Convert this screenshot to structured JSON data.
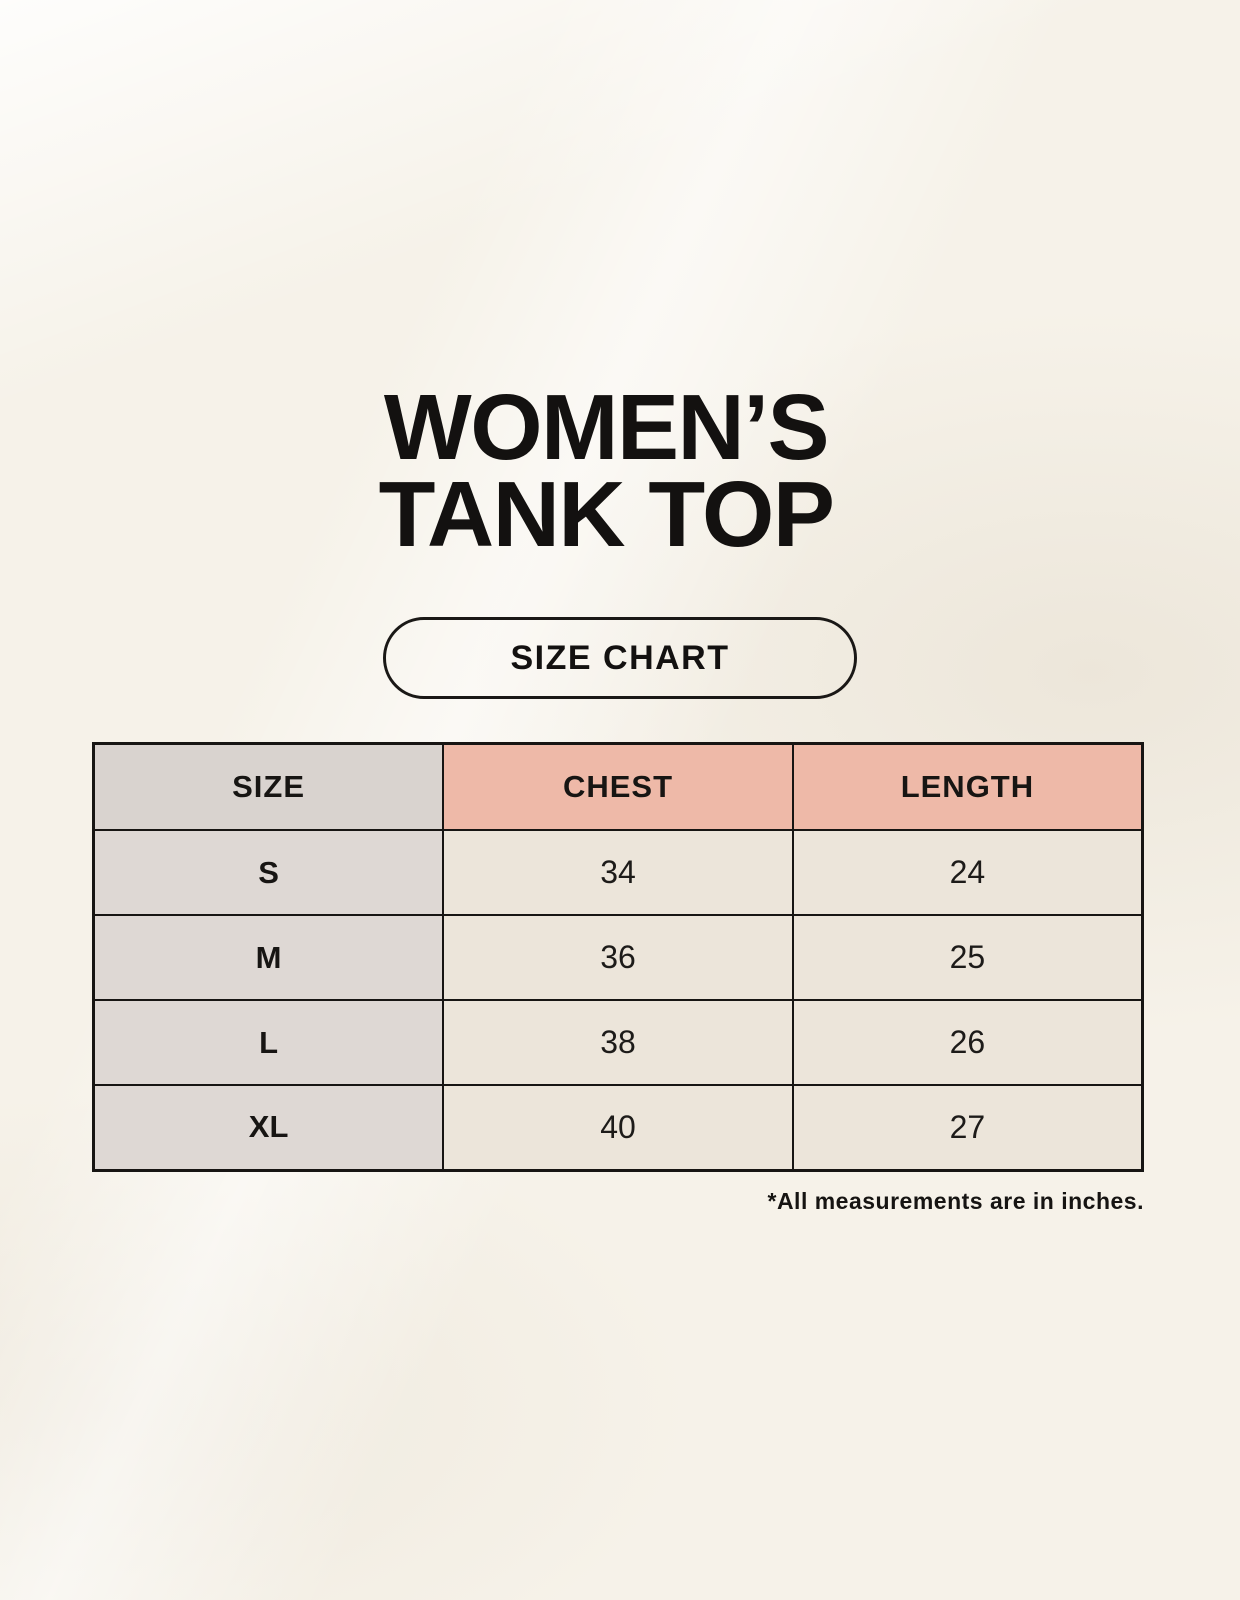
{
  "page": {
    "title": {
      "line1": "WOMEN’S",
      "line2": "TANK TOP"
    },
    "size_chart_button": "SIZE CHART",
    "footnote": "*All measurements are in inches."
  },
  "chart_data": {
    "type": "table",
    "title": "WOMEN’S TANK TOP",
    "subtitle": "SIZE CHART",
    "columns": [
      "SIZE",
      "CHEST",
      "LENGTH"
    ],
    "rows": [
      [
        "S",
        "34",
        "24"
      ],
      [
        "M",
        "36",
        "25"
      ],
      [
        "L",
        "38",
        "26"
      ],
      [
        "XL",
        "40",
        "27"
      ]
    ],
    "units_note": "*All measurements are in inches."
  },
  "colors": {
    "background": "#f6f2e9",
    "accent-pink": "#eeb9a8",
    "header-gray": "#d9d3cf",
    "size-col-gray": "#ded8d4",
    "cell-cream": "#ece5da",
    "ink": "#171513"
  }
}
